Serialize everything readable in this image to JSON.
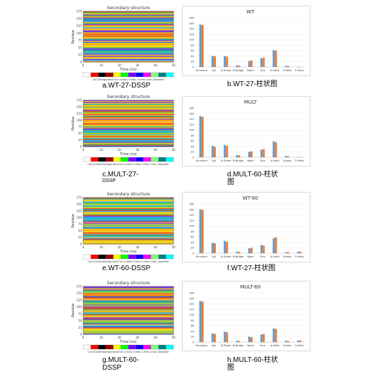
{
  "colors": {
    "blue": "#5b9bd5",
    "orange": "#ed7d31",
    "frame": "#d9d9d9",
    "palette": [
      "#ffffff",
      "#ff0000",
      "#000000",
      "#a00000",
      "#ffff00",
      "#00ff00",
      "#7f00ff",
      "#0000ff",
      "#ff00ff",
      "#7fff7f",
      "#007f7f",
      "#00ffff"
    ]
  },
  "captions": {
    "a": "a.WT-27-DSSP",
    "b": "b.WT-27-柱状图",
    "c1": "c.MULT-27-",
    "c2": "DSSP",
    "d1": "d.MULT-60-柱状",
    "d2": "图",
    "e": "e.WT-60-DSSP",
    "f": "f.WT-27-柱状图",
    "g1": "g.MULT-60-",
    "g2": "DSSP",
    "h1": "h.MULT-60-柱状",
    "h2": "图"
  },
  "chart_data": [
    {
      "id": "a",
      "type": "heatmap",
      "title": "Secondary structure",
      "xlabel": "Time (ns)",
      "ylabel": "Residue",
      "xticks": [
        "0",
        "10",
        "20",
        "30",
        "40",
        "50"
      ],
      "yticks": [
        "0",
        "25",
        "50",
        "75",
        "100",
        "125",
        "150",
        "175"
      ],
      "legend": "Coil B-Bridge Bend Turn A-Helix 5-Helix 3-Helix Chain_Separator"
    },
    {
      "id": "b",
      "type": "bar",
      "title": "WT",
      "categories": [
        "Structure",
        "Coil",
        "B-Sheet",
        "B-Bridge",
        "Bend",
        "Turn",
        "A-Helix",
        "5-Helix",
        "3-Helix"
      ],
      "series": [
        {
          "values": [
            155,
            40,
            40,
            6,
            22,
            32,
            62,
            4,
            1
          ]
        },
        {
          "values": [
            153,
            40,
            38,
            5,
            24,
            34,
            60,
            4,
            1
          ]
        }
      ],
      "yticks": [
        "0",
        "20",
        "40",
        "60",
        "80",
        "100",
        "120",
        "140",
        "160",
        "180"
      ],
      "ylim": [
        0,
        180
      ]
    },
    {
      "id": "c",
      "type": "heatmap",
      "title": "Secondary structure",
      "xlabel": "Time (ns)",
      "ylabel": "Residue",
      "xticks": [
        "0",
        "10",
        "20",
        "30",
        "40",
        "50"
      ],
      "yticks": [
        "0",
        "25",
        "50",
        "75",
        "100",
        "125",
        "150",
        "175"
      ],
      "legend": "Coil B-Sheet B-Bridge Bend Turn A-Helix 5-Helix 3-Helix Chain_Separator"
    },
    {
      "id": "d",
      "type": "bar",
      "title": "MULT",
      "categories": [
        "Structure",
        "Coil",
        "B-Sheet",
        "B-Bridge",
        "Bend",
        "Turn",
        "A-Helix",
        "5-Helix",
        "3-Helix"
      ],
      "series": [
        {
          "values": [
            150,
            42,
            45,
            8,
            20,
            28,
            58,
            5,
            1
          ]
        },
        {
          "values": [
            148,
            38,
            42,
            7,
            22,
            30,
            55,
            4,
            1
          ]
        }
      ],
      "yticks": [
        "0",
        "20",
        "40",
        "60",
        "80",
        "100",
        "120",
        "140",
        "160",
        "180"
      ],
      "ylim": [
        0,
        180
      ]
    },
    {
      "id": "e",
      "type": "heatmap",
      "title": "Secondary structure",
      "xlabel": "Time (ns)",
      "ylabel": "Residue",
      "xticks": [
        "0",
        "10",
        "20",
        "30",
        "40",
        "50"
      ],
      "yticks": [
        "0",
        "25",
        "50",
        "75",
        "100",
        "125",
        "150",
        "175"
      ],
      "legend": "Coil B-Sheet B-Bridge Bend Turn A-Helix 5-Helix 3-Helix Chain_Separator"
    },
    {
      "id": "f",
      "type": "bar",
      "title": "WT-60",
      "categories": [
        "Structure",
        "Coil",
        "B-Sheet",
        "B-Bridge",
        "Bend",
        "Turn",
        "A-Helix",
        "5-Helix",
        "3-Helix"
      ],
      "series": [
        {
          "values": [
            160,
            38,
            45,
            6,
            18,
            30,
            55,
            4,
            6
          ]
        },
        {
          "values": [
            158,
            36,
            42,
            5,
            20,
            28,
            58,
            4,
            6
          ]
        }
      ],
      "yticks": [
        "0",
        "20",
        "40",
        "60",
        "80",
        "100",
        "120",
        "140",
        "160",
        "180"
      ],
      "ylim": [
        0,
        180
      ]
    },
    {
      "id": "g",
      "type": "heatmap",
      "title": "Secondary structure",
      "xlabel": "Time (ns)",
      "ylabel": "Residue",
      "xticks": [
        "0",
        "10",
        "20",
        "30",
        "40",
        "50"
      ],
      "yticks": [
        "0",
        "25",
        "50",
        "75",
        "100",
        "125",
        "150",
        "175"
      ],
      "legend": "Coil B-Sheet B-Bridge Bend Turn A-Helix 5-Helix 3-Helix Chain_Separator"
    },
    {
      "id": "h",
      "type": "bar",
      "title": "MULT-60",
      "categories": [
        "Structure",
        "Coil",
        "B-Sheet",
        "B-Bridge",
        "Bend",
        "Turn",
        "A-Helix",
        "5-Helix",
        "3-Helix"
      ],
      "series": [
        {
          "values": [
            150,
            32,
            38,
            5,
            20,
            28,
            50,
            5,
            6
          ]
        },
        {
          "values": [
            148,
            30,
            36,
            4,
            18,
            30,
            48,
            4,
            6
          ]
        }
      ],
      "yticks": [
        "0",
        "20",
        "40",
        "60",
        "80",
        "100",
        "120",
        "140",
        "160",
        "180"
      ],
      "ylim": [
        0,
        180
      ]
    }
  ]
}
